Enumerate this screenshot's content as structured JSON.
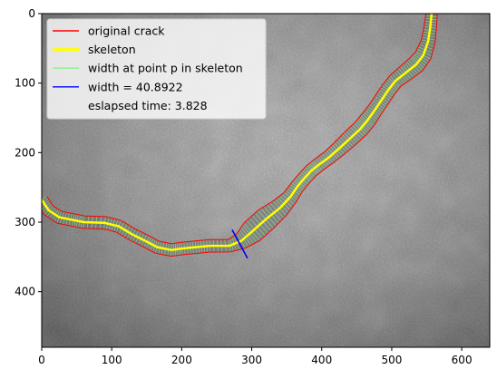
{
  "chart_data": {
    "type": "image",
    "title": "",
    "xlabel": "",
    "ylabel": "",
    "xlim": [
      0,
      640
    ],
    "ylim": [
      480,
      0
    ],
    "x_ticks": [
      0,
      100,
      200,
      300,
      400,
      500,
      600
    ],
    "y_ticks": [
      0,
      100,
      200,
      300,
      400
    ],
    "grid": false,
    "legend_placement": "top-left",
    "colors": {
      "original_crack": "#ff0000",
      "skeleton": "#ffff00",
      "width_lines": "#90ee90",
      "width_marker": "#0000ff",
      "background": "#8c8c8c"
    },
    "legend": [
      {
        "label": "original crack",
        "style": "line",
        "color": "#ff0000"
      },
      {
        "label": "skeleton",
        "style": "thick-line",
        "color": "#ffff00"
      },
      {
        "label": "width at point p in skeleton",
        "style": "line",
        "color": "#90ee90"
      },
      {
        "label": "width = 40.8922",
        "style": "line",
        "color": "#0000ff"
      },
      {
        "label": "eslapsed time: 3.828",
        "style": "none",
        "color": ""
      }
    ],
    "skeleton_points": [
      [
        0,
        268
      ],
      [
        10,
        283
      ],
      [
        25,
        293
      ],
      [
        45,
        297
      ],
      [
        60,
        300
      ],
      [
        90,
        301
      ],
      [
        110,
        306
      ],
      [
        130,
        318
      ],
      [
        150,
        328
      ],
      [
        165,
        336
      ],
      [
        185,
        340
      ],
      [
        200,
        338
      ],
      [
        220,
        336
      ],
      [
        240,
        334
      ],
      [
        268,
        334
      ],
      [
        285,
        327
      ],
      [
        300,
        314
      ],
      [
        320,
        296
      ],
      [
        340,
        280
      ],
      [
        355,
        264
      ],
      [
        365,
        249
      ],
      [
        375,
        237
      ],
      [
        385,
        226
      ],
      [
        395,
        218
      ],
      [
        410,
        207
      ],
      [
        425,
        194
      ],
      [
        440,
        180
      ],
      [
        455,
        166
      ],
      [
        465,
        154
      ],
      [
        475,
        140
      ],
      [
        485,
        125
      ],
      [
        495,
        110
      ],
      [
        505,
        97
      ],
      [
        520,
        85
      ],
      [
        535,
        73
      ],
      [
        545,
        60
      ],
      [
        552,
        40
      ],
      [
        555,
        20
      ],
      [
        557,
        0
      ]
    ],
    "crack_half_width": [
      9,
      9,
      9,
      9,
      9,
      9,
      9,
      9,
      9,
      9,
      9,
      9,
      9,
      9,
      9,
      12,
      17,
      17,
      14,
      11,
      10,
      10,
      10,
      10,
      10,
      11,
      12,
      12,
      12,
      11,
      11,
      11,
      11,
      12,
      13,
      12,
      10,
      9,
      8
    ],
    "width_marker": {
      "from": [
        272,
        311
      ],
      "to": [
        294,
        352
      ],
      "value": 40.8922
    }
  }
}
